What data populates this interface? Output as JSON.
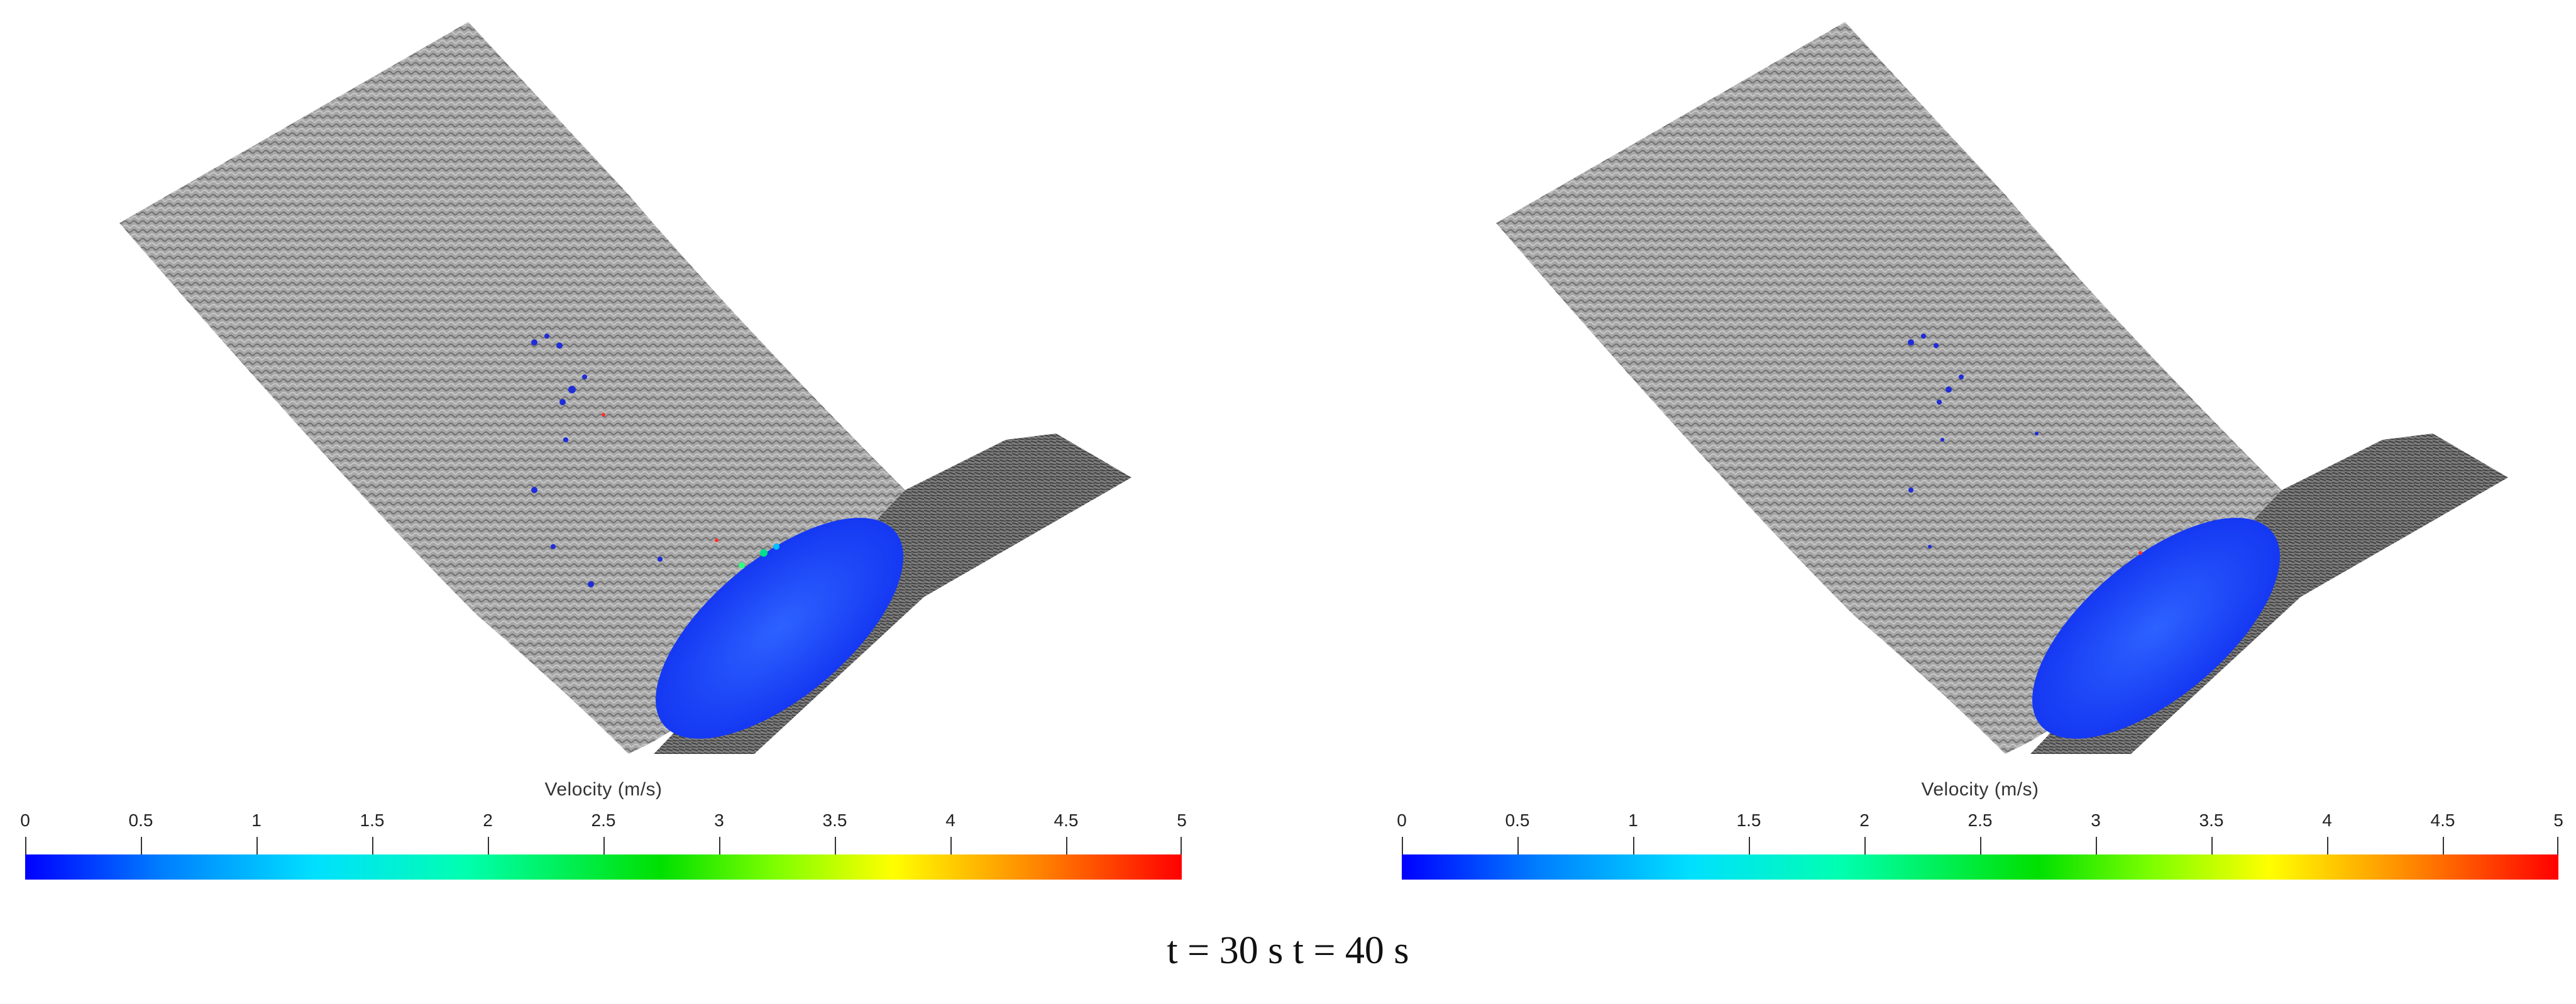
{
  "panels": [
    {
      "id": "left",
      "colorbar": {
        "title": "Velocity (m/s)",
        "ticks": [
          "0",
          "0.5",
          "1",
          "1.5",
          "2",
          "2.5",
          "3",
          "3.5",
          "4",
          "4.5",
          "5"
        ],
        "range": [
          0,
          5
        ],
        "colormap": "blue-cyan-green-yellow-red"
      }
    },
    {
      "id": "right",
      "colorbar": {
        "title": "Velocity (m/s)",
        "ticks": [
          "0",
          "0.5",
          "1",
          "1.5",
          "2",
          "2.5",
          "3",
          "3.5",
          "4",
          "4.5",
          "5"
        ],
        "range": [
          0,
          5
        ],
        "colormap": "blue-cyan-green-yellow-red"
      }
    }
  ],
  "caption": "t = 30 s t = 40 s",
  "colors": {
    "terrain": "#9a9a9a",
    "fluid": "#1a4dff",
    "background": "#ffffff"
  }
}
